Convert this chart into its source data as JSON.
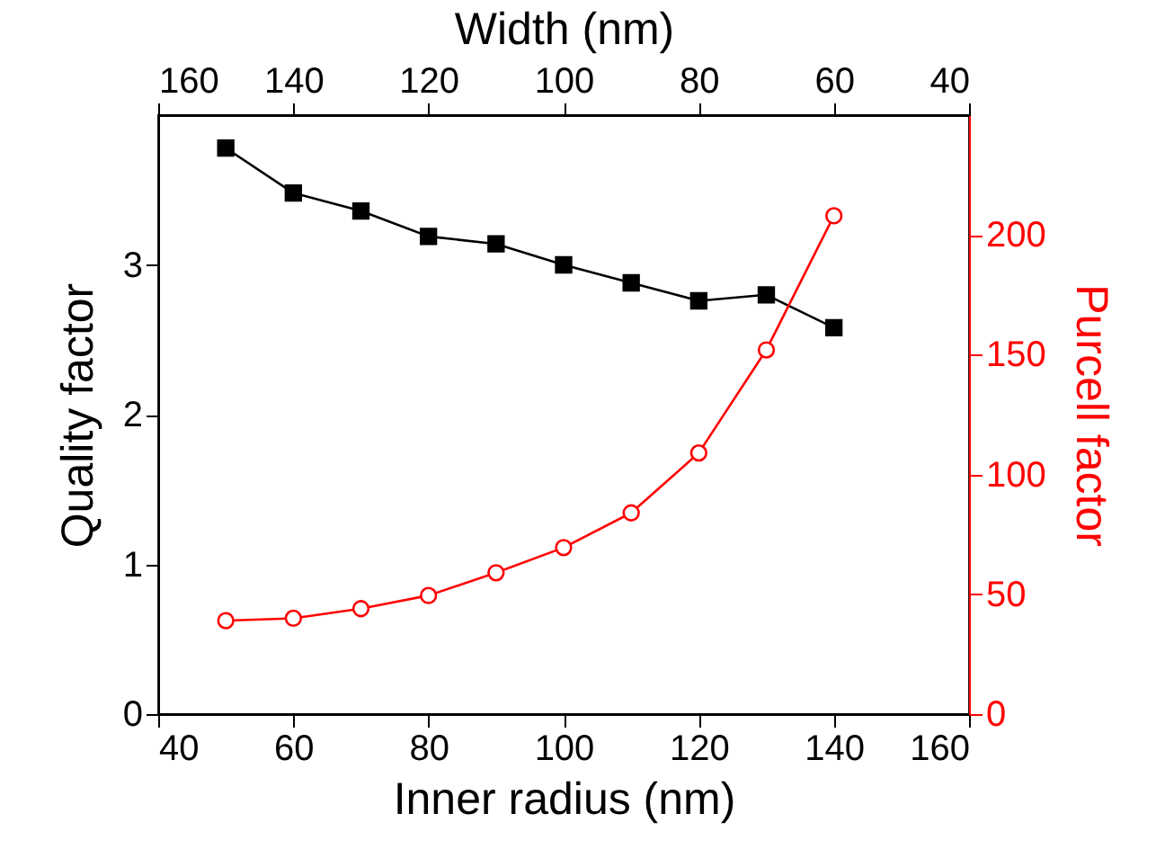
{
  "chart_data": {
    "type": "line",
    "xlabel": "Inner radius (nm)",
    "ylabel": "Quality factor",
    "y2label": "Purcell factor",
    "x2label": "Width (nm)",
    "xlim": [
      40,
      160
    ],
    "xticks": [
      40,
      60,
      80,
      100,
      120,
      140,
      160
    ],
    "x2lim": [
      160,
      40
    ],
    "x2ticks": [
      160,
      140,
      120,
      100,
      80,
      60,
      40
    ],
    "ylim": [
      0,
      4
    ],
    "yticks": [
      0,
      1,
      2,
      3
    ],
    "y2lim": [
      0,
      250
    ],
    "y2ticks": [
      0,
      50,
      100,
      150,
      200
    ],
    "x": [
      50,
      60,
      70,
      80,
      90,
      100,
      110,
      120,
      130,
      140
    ],
    "series": [
      {
        "color": "#000000",
        "marker": "square",
        "values": [
          3.78,
          3.48,
          3.36,
          3.19,
          3.14,
          3.0,
          2.88,
          2.76,
          2.8,
          2.58
        ]
      },
      {
        "color": "#ff0000",
        "marker": "circle",
        "axis": "y2",
        "values": [
          39,
          40,
          44,
          49.5,
          59,
          69.5,
          84,
          109,
          152,
          208
        ]
      }
    ],
    "grid": false
  }
}
